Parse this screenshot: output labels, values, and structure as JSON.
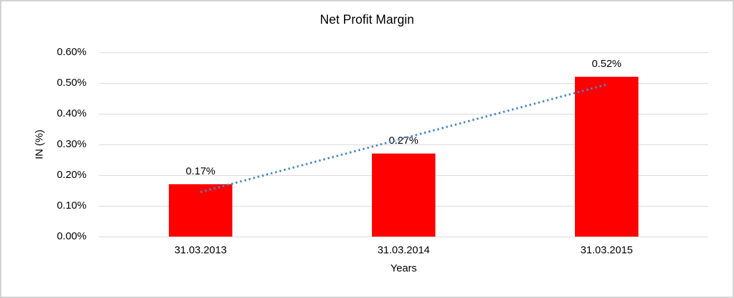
{
  "window": {
    "background_color": "#FFFFFF",
    "frame_color": "#D2D2D2"
  },
  "chart_data": {
    "type": "bar",
    "title": "Net Profit Margin",
    "xlabel": "Years",
    "ylabel": "IN (%)",
    "categories": [
      "31.03.2013",
      "31.03.2014",
      "31.03.2015"
    ],
    "values": [
      0.17,
      0.27,
      0.52
    ],
    "data_labels": [
      "0.17%",
      "0.27%",
      "0.52%"
    ],
    "y_ticks": [
      "0.00%",
      "0.10%",
      "0.20%",
      "0.30%",
      "0.40%",
      "0.50%",
      "0.60%"
    ],
    "ylim": [
      0,
      0.6
    ],
    "grid": true,
    "legend": "none",
    "bar_color": "#FF0000",
    "gridline_color": "#D9D9D9",
    "text_color": "#000000",
    "trendline": {
      "type": "linear",
      "style": "dotted",
      "color": "#4A86C8",
      "start_value": 0.145,
      "end_value": 0.495
    }
  }
}
